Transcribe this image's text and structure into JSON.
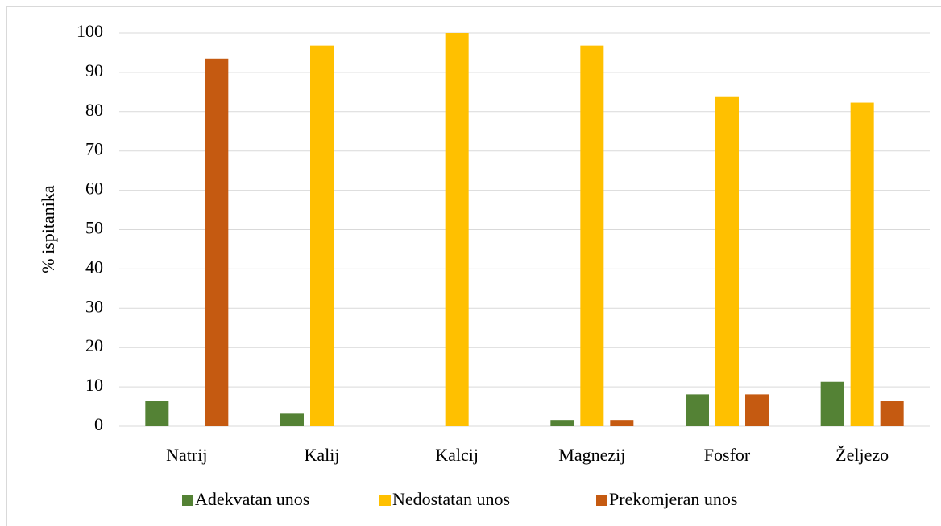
{
  "chart_data": {
    "type": "bar",
    "y_label": "% ispitanika",
    "categories": [
      "Natrij",
      "Kalij",
      "Kalcij",
      "Magnezij",
      "Fosfor",
      "Željezo"
    ],
    "series": [
      {
        "name": "Adekvatan unos",
        "color": "#548235",
        "values": [
          6.5,
          3.2,
          0,
          1.6,
          8.1,
          11.3
        ]
      },
      {
        "name": "Nedostatan unos",
        "color": "#ffc000",
        "values": [
          0,
          96.8,
          100,
          96.8,
          83.9,
          82.3
        ]
      },
      {
        "name": "Prekomjeran unos",
        "color": "#c55a11",
        "values": [
          93.5,
          0,
          0,
          1.6,
          8.1,
          6.5
        ]
      }
    ],
    "ylim": [
      0,
      100
    ],
    "yticks": [
      0,
      10,
      20,
      30,
      40,
      50,
      60,
      70,
      80,
      90,
      100
    ],
    "grid": true,
    "legend": "bottom"
  }
}
